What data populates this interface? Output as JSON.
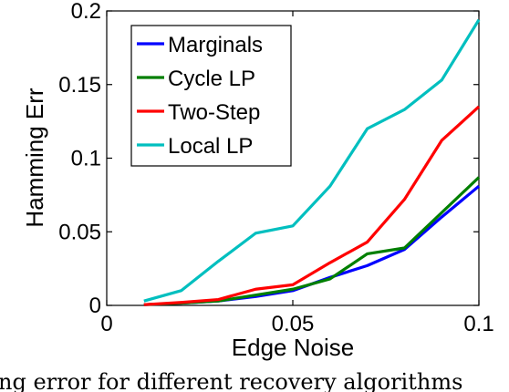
{
  "chart_data": {
    "type": "line",
    "xlabel": "Edge Noise",
    "ylabel": "Hamming Err",
    "xlim": [
      0,
      0.1
    ],
    "ylim": [
      0,
      0.2
    ],
    "xticks": [
      {
        "value": 0,
        "label": "0"
      },
      {
        "value": 0.05,
        "label": "0.05"
      },
      {
        "value": 0.1,
        "label": "0.1"
      }
    ],
    "yticks": [
      {
        "value": 0,
        "label": "0"
      },
      {
        "value": 0.05,
        "label": "0.05"
      },
      {
        "value": 0.1,
        "label": "0.1"
      },
      {
        "value": 0.15,
        "label": "0.15"
      },
      {
        "value": 0.2,
        "label": "0.2"
      }
    ],
    "grid": false,
    "legend_position": "top-left",
    "x": [
      0.01,
      0.02,
      0.03,
      0.04,
      0.05,
      0.06,
      0.07,
      0.08,
      0.09,
      0.1
    ],
    "series": [
      {
        "name": "Marginals",
        "color": "#0000ff",
        "values": [
          0.0005,
          0.0015,
          0.003,
          0.006,
          0.01,
          0.019,
          0.027,
          0.038,
          0.06,
          0.081
        ]
      },
      {
        "name": "Cycle LP",
        "color": "#007f00",
        "values": [
          0.0005,
          0.0015,
          0.003,
          0.007,
          0.011,
          0.018,
          0.035,
          0.039,
          0.063,
          0.087
        ]
      },
      {
        "name": "Two-Step",
        "color": "#ff0000",
        "values": [
          0.0005,
          0.002,
          0.004,
          0.011,
          0.014,
          0.029,
          0.043,
          0.072,
          0.112,
          0.135
        ]
      },
      {
        "name": "Local LP",
        "color": "#00bfbf",
        "values": [
          0.003,
          0.01,
          0.03,
          0.049,
          0.054,
          0.081,
          0.12,
          0.133,
          0.153,
          0.194
        ]
      }
    ]
  },
  "caption": "ng error for different recovery algorithms"
}
